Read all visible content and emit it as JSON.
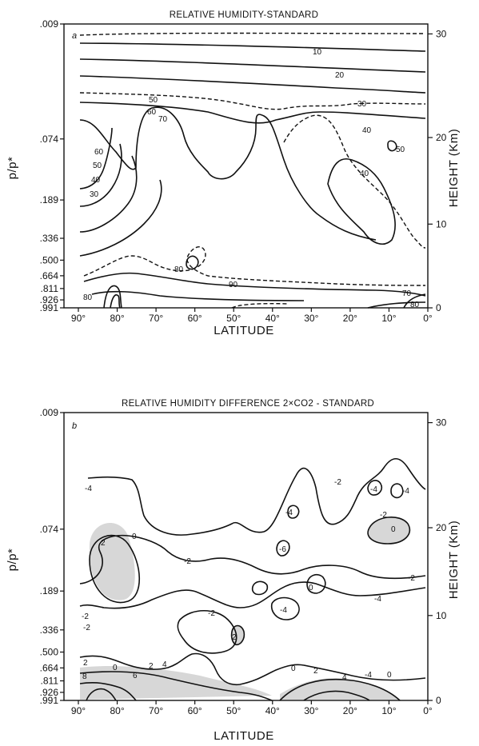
{
  "chart_data": [
    {
      "type": "contour",
      "panel": "a",
      "title": "RELATIVE HUMIDITY-STANDARD",
      "xlabel": "LATITUDE",
      "ylabel_left": "p/p*",
      "ylabel_right": "HEIGHT (Km)",
      "x_ticks": [
        "90°",
        "80°",
        "70°",
        "60°",
        "50°",
        "40°",
        "30°",
        "20°",
        "10°",
        "0°"
      ],
      "y_ticks_left": [
        ".009",
        ".074",
        ".189",
        ".336",
        ".500",
        ".664",
        ".811",
        ".926",
        ".991"
      ],
      "y_ticks_right": [
        "30",
        "20",
        "10",
        "0"
      ],
      "contour_labels": [
        "10",
        "20",
        "30",
        "40",
        "50",
        "60",
        "70",
        "50",
        "40",
        "60",
        "50",
        "40",
        "30",
        "80",
        "90",
        "80",
        "70",
        "80"
      ]
    },
    {
      "type": "contour",
      "panel": "b",
      "title": "RELATIVE HUMIDITY DIFFERENCE  2×CO2 - STANDARD",
      "xlabel": "LATITUDE",
      "ylabel_left": "p/p*",
      "ylabel_right": "HEIGHT (Km)",
      "x_ticks": [
        "90°",
        "80°",
        "70°",
        "60°",
        "50°",
        "40°",
        "30°",
        "20°",
        "10°",
        "0°"
      ],
      "y_ticks_left": [
        ".009",
        ".074",
        ".189",
        ".336",
        ".500",
        ".664",
        ".811",
        ".926",
        ".991"
      ],
      "y_ticks_right": [
        "30",
        "20",
        "10",
        "0"
      ],
      "contour_labels": [
        "-2",
        "-4",
        "-4",
        "-4",
        "-2",
        "-4",
        "-6",
        "0",
        "0",
        "2",
        "-2",
        "-2",
        "-2",
        "-4",
        "-4",
        "0",
        "-2",
        "-2",
        "2",
        "0",
        "2",
        "2",
        "4",
        "6",
        "8",
        "0",
        "2",
        "4",
        "-4",
        "0"
      ]
    }
  ]
}
